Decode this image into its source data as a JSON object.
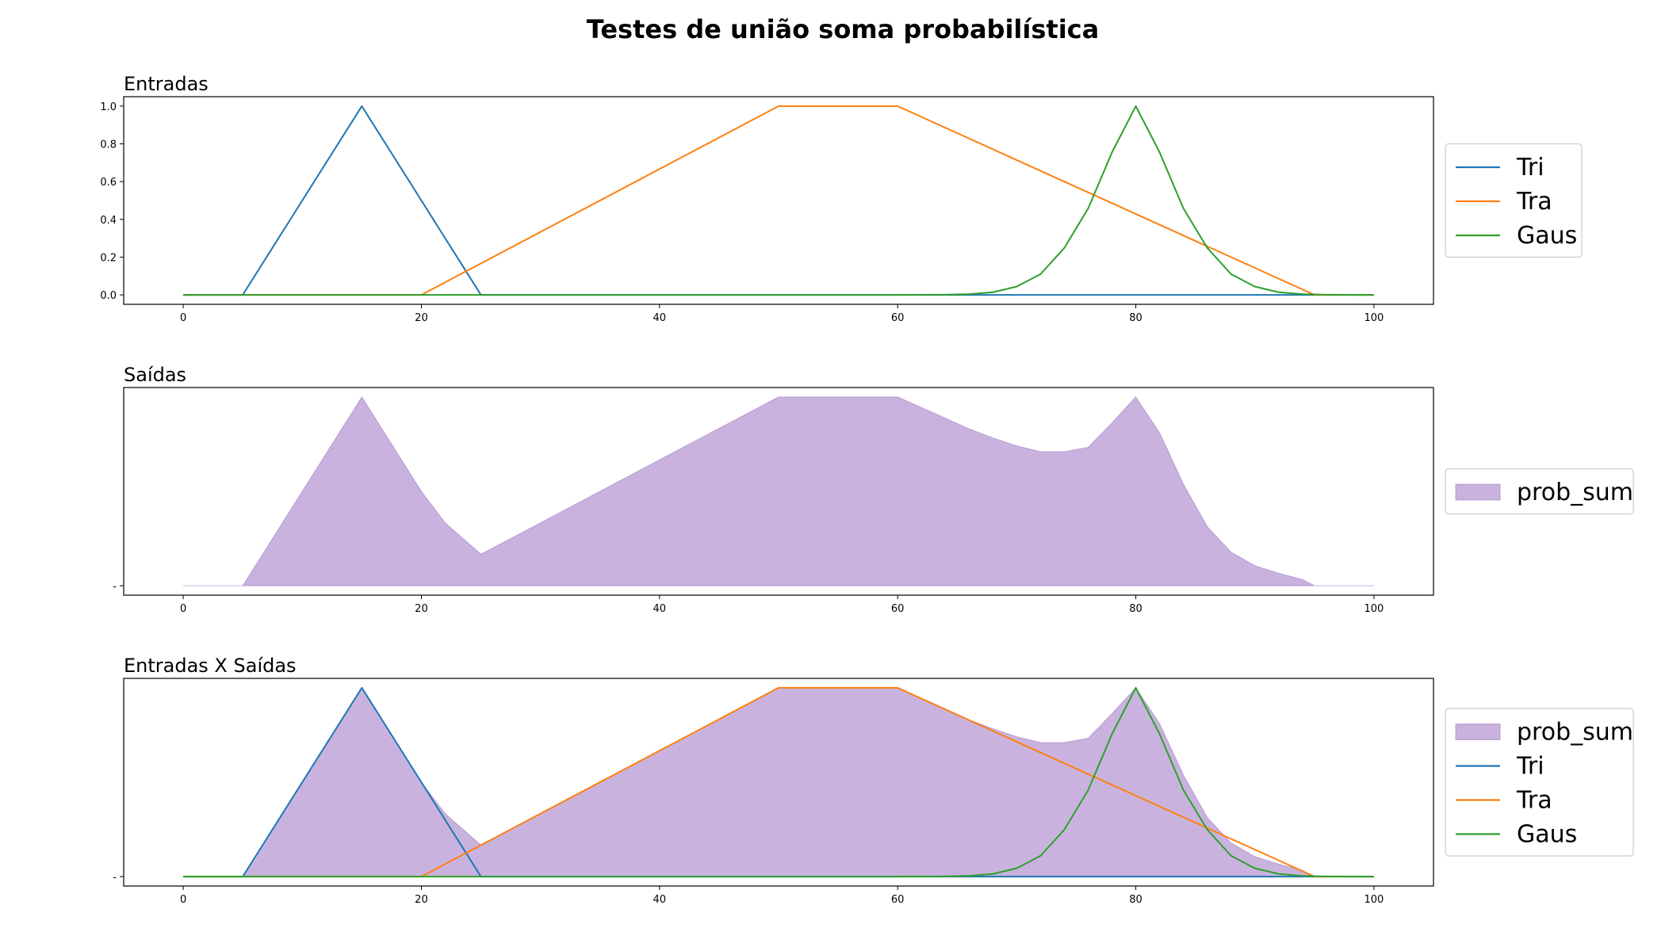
{
  "figure": {
    "title": "Testes de união soma probabilística"
  },
  "chart_data": [
    {
      "type": "line",
      "title": "Entradas",
      "xlabel": "",
      "ylabel": "",
      "xlim": [
        -5,
        105
      ],
      "ylim": [
        -0.05,
        1.05
      ],
      "xticks": [
        "0",
        "20",
        "40",
        "60",
        "80",
        "100"
      ],
      "yticks": [
        "0.0",
        "0.2",
        "0.4",
        "0.6",
        "0.8",
        "1.0"
      ],
      "grid": false,
      "legend_position": "outside-right",
      "series": [
        {
          "name": "Tri",
          "kind": "line",
          "color": "#1f77b4",
          "x": [
            0,
            5,
            15,
            25,
            100
          ],
          "y": [
            0,
            0,
            1,
            0,
            0
          ]
        },
        {
          "name": "Tra",
          "kind": "line",
          "color": "#ff7f0e",
          "x": [
            0,
            20,
            50,
            60,
            95,
            100
          ],
          "y": [
            0,
            0,
            1,
            1,
            0,
            0
          ]
        },
        {
          "name": "Gaus",
          "kind": "line",
          "color": "#2ca02c",
          "x": [
            0,
            60,
            64,
            66,
            68,
            70,
            72,
            74,
            76,
            78,
            80,
            82,
            84,
            86,
            88,
            90,
            92,
            94,
            96,
            100
          ],
          "y": [
            0,
            0,
            0.001,
            0.004,
            0.014,
            0.044,
            0.11,
            0.249,
            0.458,
            0.755,
            1.0,
            0.755,
            0.458,
            0.249,
            0.11,
            0.044,
            0.014,
            0.004,
            0.001,
            0
          ]
        }
      ]
    },
    {
      "type": "area",
      "title": "Saídas",
      "xlabel": "",
      "ylabel": "",
      "xlim": [
        -5,
        105
      ],
      "ylim": [
        -0.05,
        1.05
      ],
      "xticks": [
        "0",
        "20",
        "40",
        "60",
        "80",
        "100"
      ],
      "yticks": [
        "-"
      ],
      "grid": false,
      "legend_position": "outside-right",
      "series": [
        {
          "name": "prob_sum",
          "kind": "area",
          "color": "#9467bd",
          "x": [
            0,
            5,
            15,
            20,
            22,
            25,
            30,
            40,
            50,
            60,
            64,
            66,
            68,
            70,
            72,
            74,
            76,
            78,
            80,
            82,
            84,
            86,
            88,
            90,
            92,
            94,
            95,
            100
          ],
          "y": [
            0,
            0,
            1,
            0.5,
            0.333,
            0.167,
            0.333,
            0.667,
            1,
            1,
            0.888,
            0.831,
            0.783,
            0.741,
            0.71,
            0.71,
            0.733,
            0.863,
            1.0,
            0.81,
            0.538,
            0.313,
            0.178,
            0.106,
            0.066,
            0.033,
            0,
            0
          ]
        }
      ]
    },
    {
      "type": "area",
      "title": "Entradas X Saídas",
      "xlabel": "",
      "ylabel": "",
      "xlim": [
        -5,
        105
      ],
      "ylim": [
        -0.05,
        1.05
      ],
      "xticks": [
        "0",
        "20",
        "40",
        "60",
        "80",
        "100"
      ],
      "yticks": [
        "-"
      ],
      "grid": false,
      "legend_position": "outside-right",
      "series": [
        {
          "name": "prob_sum",
          "kind": "area",
          "color": "#9467bd",
          "x": [
            0,
            5,
            15,
            20,
            22,
            25,
            30,
            40,
            50,
            60,
            64,
            66,
            68,
            70,
            72,
            74,
            76,
            78,
            80,
            82,
            84,
            86,
            88,
            90,
            92,
            94,
            95,
            100
          ],
          "y": [
            0,
            0,
            1,
            0.5,
            0.333,
            0.167,
            0.333,
            0.667,
            1,
            1,
            0.888,
            0.831,
            0.783,
            0.741,
            0.71,
            0.71,
            0.733,
            0.863,
            1.0,
            0.81,
            0.538,
            0.313,
            0.178,
            0.106,
            0.066,
            0.033,
            0,
            0
          ]
        },
        {
          "name": "Tri",
          "kind": "line",
          "color": "#1f77b4",
          "x": [
            0,
            5,
            15,
            25,
            100
          ],
          "y": [
            0,
            0,
            1,
            0,
            0
          ]
        },
        {
          "name": "Tra",
          "kind": "line",
          "color": "#ff7f0e",
          "x": [
            0,
            20,
            50,
            60,
            95,
            100
          ],
          "y": [
            0,
            0,
            1,
            1,
            0,
            0
          ]
        },
        {
          "name": "Gaus",
          "kind": "line",
          "color": "#2ca02c",
          "x": [
            0,
            60,
            64,
            66,
            68,
            70,
            72,
            74,
            76,
            78,
            80,
            82,
            84,
            86,
            88,
            90,
            92,
            94,
            96,
            100
          ],
          "y": [
            0,
            0,
            0.001,
            0.004,
            0.014,
            0.044,
            0.11,
            0.249,
            0.458,
            0.755,
            1.0,
            0.755,
            0.458,
            0.249,
            0.11,
            0.044,
            0.014,
            0.004,
            0.001,
            0
          ]
        }
      ]
    }
  ]
}
